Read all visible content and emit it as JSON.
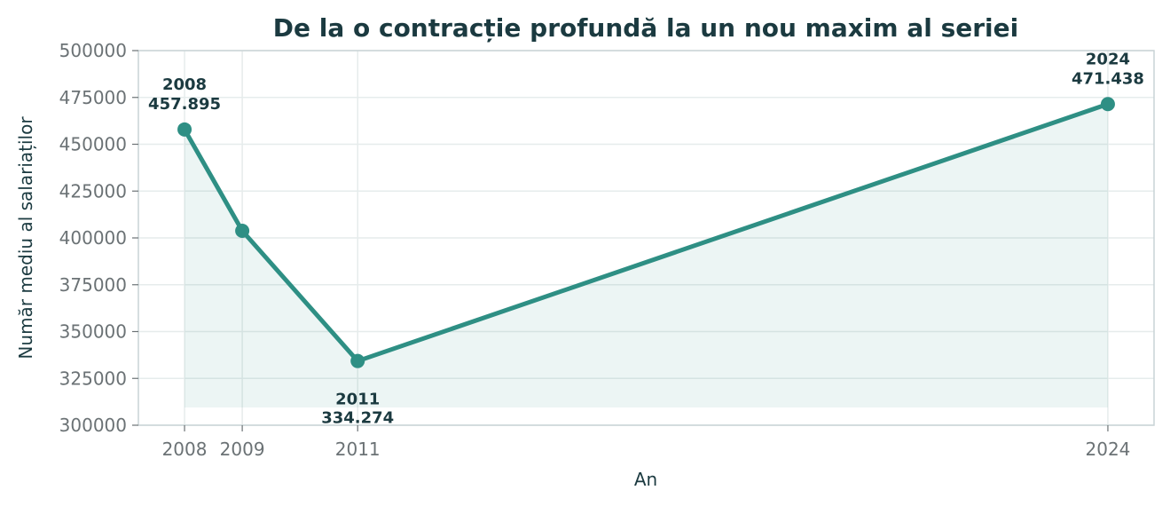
{
  "chart_data": {
    "type": "line",
    "title": "De la o contracție profundă la un nou maxim al seriei",
    "xlabel": "An",
    "ylabel": "Număr mediu al salariaților",
    "x": [
      2008,
      2009,
      2011,
      2024
    ],
    "series": [
      {
        "values": [
          457895,
          403800,
          334274,
          471438
        ]
      }
    ],
    "xticks": [
      "2008",
      "2009",
      "2011",
      "2024"
    ],
    "yticks": [
      "300000",
      "325000",
      "350000",
      "375000",
      "400000",
      "425000",
      "450000",
      "475000",
      "500000"
    ],
    "xlim": [
      2007.2,
      2024.8
    ],
    "ylim": [
      300000,
      500000
    ],
    "fill_baseline": 309500,
    "grid": true,
    "annotations": [
      {
        "x": 2008,
        "y": 457895,
        "year": "2008",
        "value": "457.895",
        "position": "above"
      },
      {
        "x": 2011,
        "y": 334274,
        "year": "2011",
        "value": "334.274",
        "position": "below"
      },
      {
        "x": 2024,
        "y": 471438,
        "year": "2024",
        "value": "471.438",
        "position": "above"
      }
    ],
    "colors": {
      "line": "#2e8f84",
      "fill": "#2e8f84",
      "grid": "#e6ecec",
      "axis": "#c9d3d6"
    }
  }
}
